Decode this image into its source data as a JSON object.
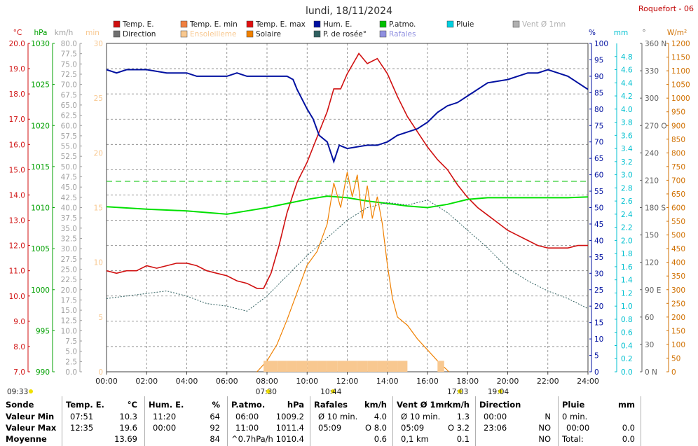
{
  "title": "lundi, 18/11/2024",
  "station": "Roquefort - 06",
  "legend": [
    {
      "label": "Temp. E.",
      "color": "#d01010"
    },
    {
      "label": "Temp. E. min",
      "color": "#f08040"
    },
    {
      "label": "Temp. E. max",
      "color": "#e01010"
    },
    {
      "label": "Hum. E.",
      "color": "#0010a0"
    },
    {
      "label": "P.atmo.",
      "color": "#00c000"
    },
    {
      "label": "Pluie",
      "color": "#00d0e0"
    },
    {
      "label": "Vent Ø 1mn",
      "color": "#b0b0b0"
    },
    {
      "label": "Direction",
      "color": "#707070"
    },
    {
      "label": "Ensoleilleme",
      "color": "#f8c890"
    },
    {
      "label": "Solaire",
      "color": "#f08000"
    },
    {
      "label": "P. de rosée°",
      "color": "#306060"
    },
    {
      "label": "Rafales",
      "color": "#9090e0"
    }
  ],
  "axis_units": {
    "temp": "°C",
    "pressure": "hPa",
    "wind": "km/h",
    "sun_minutes": "min",
    "humidity": "%",
    "rain": "mm",
    "direction": "°",
    "solar": "W/m²"
  },
  "axis_colors": {
    "temp": "#d01010",
    "pressure": "#00a000",
    "wind": "#a0a0a0",
    "sun_minutes": "#f8c890",
    "humidity": "#0010a0",
    "rain": "#00c0d0",
    "direction": "#606060",
    "solar": "#d07000"
  },
  "chart_data": {
    "type": "line",
    "title": "lundi, 18/11/2024",
    "x_ticks": [
      "00:00",
      "02:00",
      "04:00",
      "06:00",
      "08:00",
      "10:00",
      "12:00",
      "14:00",
      "16:00",
      "18:00",
      "20:00",
      "22:00",
      "24:00"
    ],
    "axes": {
      "temp": {
        "label": "°C",
        "range": [
          7.0,
          20.0
        ],
        "ticks": [
          "20.0",
          "19.0",
          "18.0",
          "17.0",
          "16.0",
          "15.0",
          "14.0",
          "13.0",
          "12.0",
          "11.0",
          "10.0",
          "9.0",
          "8.0",
          "7.0"
        ]
      },
      "pressure": {
        "label": "hPa",
        "range": [
          990,
          1030
        ],
        "ticks": [
          "1030",
          "1025",
          "1020",
          "1015",
          "1010",
          "1005",
          "1000",
          "995",
          "990"
        ]
      },
      "wind": {
        "label": "km/h",
        "range": [
          0,
          80
        ],
        "ticks": [
          "80.0",
          "77.5",
          "75.0",
          "72.5",
          "70.0",
          "67.5",
          "65.0",
          "62.5",
          "60.0",
          "57.5",
          "55.0",
          "52.5",
          "50.0",
          "47.5",
          "45.0",
          "42.5",
          "40.0",
          "37.5",
          "35.0",
          "32.5",
          "30.0",
          "27.5",
          "25.0",
          "22.5",
          "20.0",
          "17.5",
          "15.0",
          "12.5",
          "10.0",
          "7.5",
          "5.0",
          "2.5",
          "0.0"
        ]
      },
      "sun_minutes": {
        "label": "min",
        "range": [
          0,
          30
        ],
        "ticks": [
          "30",
          "25",
          "20",
          "15",
          "10",
          "5",
          "0"
        ]
      },
      "humidity": {
        "label": "%",
        "range": [
          0,
          100
        ],
        "ticks": [
          "100",
          "95",
          "90",
          "85",
          "80",
          "75",
          "70",
          "65",
          "60",
          "55",
          "50",
          "45",
          "40",
          "35",
          "30",
          "25",
          "20",
          "15",
          "10",
          "5",
          "0"
        ]
      },
      "rain": {
        "label": "mm",
        "range": [
          0,
          5.0
        ],
        "ticks": [
          "4.8",
          "4.6",
          "4.4",
          "4.2",
          "4.0",
          "3.8",
          "3.6",
          "3.4",
          "3.2",
          "3.0",
          "2.8",
          "2.6",
          "2.4",
          "2.2",
          "2.0",
          "1.8",
          "1.6",
          "1.4",
          "1.2",
          "1.0",
          "0.8",
          "0.6",
          "0.4",
          "0.2",
          "0.0"
        ]
      },
      "direction": {
        "label": "°",
        "range": [
          0,
          360
        ],
        "ticks": [
          "360 N",
          "330",
          "300",
          "270 O",
          "240",
          "210",
          "180 S",
          "150",
          "120",
          "90 E",
          "60",
          "30",
          "0 N"
        ]
      },
      "solar": {
        "label": "W/m²",
        "range": [
          0,
          1200
        ],
        "ticks": [
          "1200",
          "1150",
          "1100",
          "1050",
          "1000",
          "950",
          "900",
          "850",
          "800",
          "750",
          "700",
          "650",
          "600",
          "550",
          "500",
          "450",
          "400",
          "350",
          "300",
          "250",
          "200",
          "150",
          "100",
          "50",
          "0"
        ]
      }
    },
    "series": [
      {
        "name": "Temp. E.",
        "axis": "temp",
        "x": [
          0,
          0.5,
          1,
          1.5,
          2,
          2.5,
          3,
          3.5,
          4,
          4.5,
          5,
          5.5,
          6,
          6.5,
          7,
          7.5,
          7.83,
          8.2,
          8.6,
          9,
          9.5,
          10,
          10.5,
          11,
          11.33,
          11.67,
          12,
          12.58,
          13,
          13.5,
          14,
          14.5,
          15,
          15.5,
          16,
          16.5,
          17,
          17.5,
          18,
          18.5,
          19,
          19.5,
          20,
          20.5,
          21,
          21.5,
          22,
          22.5,
          23,
          23.5,
          24
        ],
        "y": [
          11.0,
          10.9,
          11.0,
          11.0,
          11.2,
          11.1,
          11.2,
          11.3,
          11.3,
          11.2,
          11.0,
          10.9,
          10.8,
          10.6,
          10.5,
          10.3,
          10.3,
          10.9,
          12.0,
          13.3,
          14.5,
          15.3,
          16.3,
          17.3,
          18.2,
          18.2,
          18.8,
          19.6,
          19.2,
          19.4,
          18.8,
          17.9,
          17.1,
          16.5,
          15.9,
          15.4,
          15.0,
          14.4,
          13.9,
          13.5,
          13.2,
          12.9,
          12.6,
          12.4,
          12.2,
          12.0,
          11.9,
          11.9,
          11.9,
          12.0,
          12.0
        ]
      },
      {
        "name": "Hum. E.",
        "axis": "humidity",
        "x": [
          0,
          0.5,
          1,
          2,
          3,
          4,
          4.5,
          5,
          6,
          6.5,
          7,
          8,
          9,
          9.3,
          9.5,
          10,
          10.3,
          10.6,
          11,
          11.33,
          11.6,
          12,
          13,
          13.5,
          14,
          14.5,
          15,
          15.5,
          16,
          16.5,
          17,
          17.5,
          18,
          19,
          20,
          21,
          21.5,
          22,
          22.5,
          23,
          23.5,
          24
        ],
        "y": [
          92,
          91,
          92,
          92,
          91,
          91,
          90,
          90,
          90,
          91,
          90,
          90,
          90,
          89,
          86,
          80,
          77,
          72,
          70,
          64,
          69,
          68,
          69,
          69,
          70,
          72,
          73,
          74,
          76,
          79,
          81,
          82,
          84,
          88,
          89,
          91,
          91,
          92,
          91,
          90,
          88,
          86
        ]
      },
      {
        "name": "P.atmo.",
        "axis": "pressure",
        "x": [
          0,
          2,
          4,
          6,
          7,
          8,
          9,
          10,
          11,
          12,
          13,
          14,
          15,
          16,
          17,
          18,
          19,
          20,
          21,
          22,
          23,
          24
        ],
        "y": [
          1010.1,
          1009.8,
          1009.6,
          1009.2,
          1009.6,
          1010.0,
          1010.5,
          1011.0,
          1011.4,
          1011.2,
          1010.8,
          1010.5,
          1010.2,
          1010.0,
          1010.4,
          1011.0,
          1011.2,
          1011.2,
          1011.2,
          1011.2,
          1011.2,
          1011.3
        ]
      },
      {
        "name": "P. de rosée°",
        "axis": "temp",
        "x": [
          0,
          1,
          2,
          3,
          4,
          5,
          6,
          7,
          8,
          9,
          10,
          11,
          12,
          13,
          14,
          15,
          16,
          17,
          18,
          19,
          20,
          21,
          22,
          23,
          24
        ],
        "y": [
          9.9,
          10.0,
          10.1,
          10.2,
          10.0,
          9.7,
          9.6,
          9.4,
          10.0,
          10.8,
          11.6,
          12.3,
          13.0,
          13.5,
          13.7,
          13.6,
          13.8,
          13.3,
          12.6,
          11.9,
          11.1,
          10.6,
          10.2,
          9.9,
          9.5
        ]
      },
      {
        "name": "Solaire",
        "axis": "solar",
        "x": [
          7.5,
          8,
          8.5,
          9,
          9.5,
          10,
          10.5,
          11,
          11.33,
          11.67,
          12,
          12.25,
          12.5,
          12.75,
          13,
          13.25,
          13.5,
          13.75,
          14,
          14.25,
          14.5,
          15,
          15.5,
          16,
          16.5,
          17,
          17.05
        ],
        "y": [
          0,
          40,
          100,
          190,
          290,
          390,
          440,
          540,
          690,
          600,
          730,
          640,
          720,
          560,
          680,
          560,
          640,
          540,
          390,
          270,
          200,
          170,
          120,
          80,
          40,
          5,
          0
        ]
      },
      {
        "name": "Ensoleilleme",
        "axis": "sun_minutes",
        "x": [
          7.83,
          8,
          8.5,
          9,
          9.5,
          10,
          10.5,
          11,
          11.5,
          12,
          12.5,
          13,
          13.5,
          14,
          14.5,
          15,
          15.5,
          16,
          16.5,
          16.83
        ],
        "y": [
          1,
          1,
          1,
          1,
          1,
          1,
          1,
          1,
          1,
          1,
          1,
          1,
          1,
          1,
          1,
          0,
          0,
          0,
          1,
          1
        ]
      }
    ],
    "reference_line": {
      "axis": "rain",
      "value": 2.9
    },
    "sun_labels": [
      {
        "time": "09:33",
        "x": 0.0
      },
      {
        "time": "07:30",
        "x": 7.5
      },
      {
        "time": "10:44",
        "x": 10.73
      },
      {
        "time": "17:03",
        "x": 17.05
      },
      {
        "time": "19:04",
        "x": 19.07
      }
    ]
  },
  "table": {
    "sonde": {
      "header": "Sonde",
      "rows": [
        "Valeur Min",
        "Valeur Max",
        "Moyenne"
      ]
    },
    "temp": {
      "header": "Temp. E.",
      "unit": "°C",
      "rows": [
        [
          "07:51",
          "10.3"
        ],
        [
          "12:35",
          "19.6"
        ],
        [
          "",
          "13.69"
        ]
      ]
    },
    "hum": {
      "header": "Hum. E.",
      "unit": "%",
      "rows": [
        [
          "11:20",
          "64"
        ],
        [
          "00:00",
          "92"
        ],
        [
          "",
          "84"
        ]
      ]
    },
    "patmo": {
      "header": "P.atmo.",
      "unit": "hPa",
      "rows": [
        [
          "06:00",
          "1009.2"
        ],
        [
          "11:00",
          "1011.4"
        ],
        [
          "^0.7hPa/h",
          "1010.4"
        ]
      ]
    },
    "rafales": {
      "header": "Rafales",
      "unit": "km/h",
      "rows": [
        [
          "Ø 10 min.",
          "4.0"
        ],
        [
          "05:09",
          "O 8.0"
        ],
        [
          "",
          "0.6"
        ]
      ]
    },
    "vent": {
      "header": "Vent Ø 1mn",
      "unit": "km/h",
      "rows": [
        [
          "Ø 10 min.",
          "1.3"
        ],
        [
          "05:09",
          "O 3.2"
        ],
        [
          "0,1 km",
          "0.1"
        ]
      ]
    },
    "direction": {
      "header": "Direction",
      "rows": [
        [
          "00:00",
          "N"
        ],
        [
          "23:06",
          "NO"
        ],
        [
          "",
          "NO"
        ]
      ]
    },
    "pluie": {
      "header": "Pluie",
      "unit": "mm",
      "rows": [
        [
          "0 min.",
          ""
        ],
        [
          "00:00",
          "0.0"
        ],
        [
          "Total:",
          "0.0"
        ]
      ]
    }
  }
}
